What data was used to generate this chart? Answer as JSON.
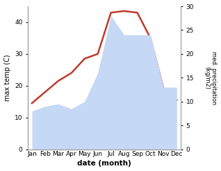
{
  "months": [
    "Jan",
    "Feb",
    "Mar",
    "Apr",
    "May",
    "Jun",
    "Jul",
    "Aug",
    "Sep",
    "Oct",
    "Nov",
    "Dec"
  ],
  "month_positions": [
    0,
    1,
    2,
    3,
    4,
    5,
    6,
    7,
    8,
    9,
    10,
    11
  ],
  "temperature": [
    14.5,
    18.0,
    21.5,
    24.0,
    28.5,
    30.0,
    43.0,
    43.5,
    43.0,
    35.0,
    19.0,
    15.5
  ],
  "precipitation": [
    8.0,
    9.0,
    9.5,
    8.5,
    10.0,
    16.0,
    28.0,
    24.0,
    24.0,
    24.0,
    13.0,
    13.0
  ],
  "temp_color": "#c0392b",
  "precip_fill_color": "#c5d8f5",
  "temp_ylim": [
    0,
    45
  ],
  "precip_ylim": [
    0,
    30
  ],
  "temp_yticks": [
    0,
    10,
    20,
    30,
    40
  ],
  "precip_yticks": [
    0,
    5,
    10,
    15,
    20,
    25,
    30
  ],
  "ylabel_left": "max temp (C)",
  "ylabel_right": "med. precipitation\n(kg/m2)",
  "xlabel": "date (month)",
  "background_color": "#ffffff",
  "spine_color": "#999999",
  "temp_linewidth": 1.8
}
